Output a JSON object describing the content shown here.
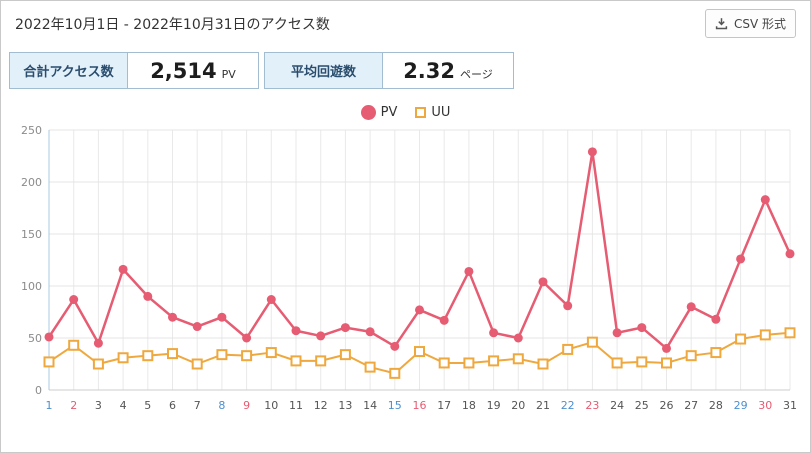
{
  "header": {
    "title": "2022年10月1日 - 2022年10月31日のアクセス数",
    "csv_button_label": "CSV 形式"
  },
  "stats": [
    {
      "label": "合計アクセス数",
      "value": "2,514",
      "unit": "PV"
    },
    {
      "label": "平均回遊数",
      "value": "2.32",
      "unit": "ページ"
    }
  ],
  "chart_data": {
    "type": "line",
    "x": [
      1,
      2,
      3,
      4,
      5,
      6,
      7,
      8,
      9,
      10,
      11,
      12,
      13,
      14,
      15,
      16,
      17,
      18,
      19,
      20,
      21,
      22,
      23,
      24,
      25,
      26,
      27,
      28,
      29,
      30,
      31
    ],
    "series": [
      {
        "name": "PV",
        "marker": "circle",
        "color": "#e65c72",
        "values": [
          51,
          87,
          45,
          116,
          90,
          70,
          61,
          70,
          50,
          87,
          57,
          52,
          60,
          56,
          42,
          77,
          67,
          114,
          55,
          50,
          104,
          81,
          229,
          55,
          60,
          40,
          80,
          68,
          126,
          183,
          131
        ]
      },
      {
        "name": "UU",
        "marker": "square",
        "color": "#efa83d",
        "values": [
          27,
          43,
          25,
          31,
          33,
          35,
          25,
          34,
          33,
          36,
          28,
          28,
          34,
          22,
          16,
          37,
          26,
          26,
          28,
          30,
          25,
          39,
          46,
          26,
          27,
          26,
          33,
          36,
          49,
          53,
          55
        ]
      }
    ],
    "ylim": [
      0,
      250
    ],
    "yticks": [
      0,
      50,
      100,
      150,
      200,
      250
    ],
    "grid": true,
    "legend_position": "top-center",
    "x_label_colors": {
      "weekday": "#555555",
      "saturday": "#4d8fce",
      "sunday": "#e65c72"
    },
    "saturdays": [
      1,
      8,
      15,
      22,
      29
    ],
    "sundays": [
      2,
      9,
      16,
      23,
      30
    ]
  }
}
